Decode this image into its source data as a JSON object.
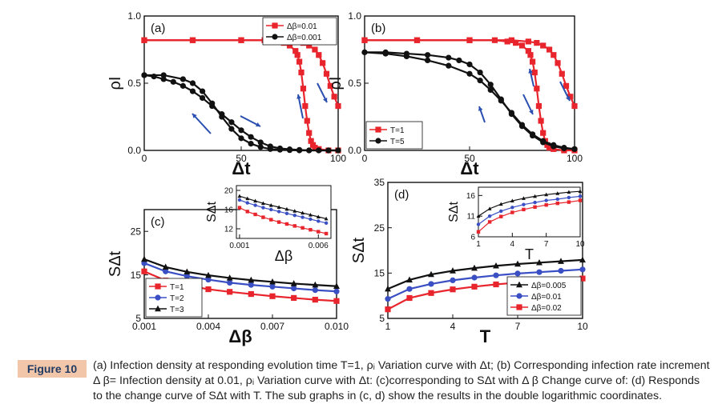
{
  "figure_label": "Figure 10",
  "caption": "(a) Infection density at responding evolution time T=1, ρᵢ Variation curve with Δt; (b) Corresponding infection rate increment Δ β= Infection density at 0.01, ρᵢ Variation curve with Δt: (c)corresponding to SΔt with Δ β Change curve of: (d) Responds to the change curve of SΔt with T. The sub graphs in (c, d) show the results in the double logarithmic coordinates.",
  "colors": {
    "red": "#e8242c",
    "black": "#111111",
    "blue": "#3a4fc4",
    "arrow": "#2a4fb0"
  },
  "chart_data": [
    {
      "panel": "(a)",
      "type": "line",
      "xlabel": "Δt",
      "ylabel": "ρI",
      "xlim": [
        0,
        100
      ],
      "ylim": [
        0,
        1
      ],
      "xticks": [
        "0",
        "50",
        "100"
      ],
      "yticks": [
        "0.0",
        "0.5",
        "1.0"
      ],
      "legend_position": "top-right",
      "series": [
        {
          "name": "Δβ=0.01",
          "color": "red",
          "marker": "square",
          "x": [
            0,
            25,
            50,
            62,
            68,
            72,
            75,
            78,
            79,
            80,
            81,
            82,
            83,
            84,
            85,
            86,
            87,
            88,
            90,
            95,
            100
          ],
          "y": [
            0.82,
            0.82,
            0.82,
            0.82,
            0.81,
            0.8,
            0.78,
            0.74,
            0.71,
            0.66,
            0.58,
            0.46,
            0.33,
            0.22,
            0.13,
            0.07,
            0.04,
            0.02,
            0.01,
            0,
            0
          ]
        },
        {
          "name": "Δβ=0.01",
          "color": "red",
          "marker": "square",
          "x": [
            0,
            25,
            50,
            70,
            78,
            82,
            85,
            88,
            90,
            92,
            94,
            96,
            98,
            100
          ],
          "y": [
            0.82,
            0.82,
            0.82,
            0.82,
            0.81,
            0.8,
            0.78,
            0.75,
            0.71,
            0.65,
            0.57,
            0.48,
            0.4,
            0.33
          ]
        },
        {
          "name": "Δβ=0.001",
          "color": "black",
          "marker": "circle",
          "x": [
            0,
            5,
            10,
            15,
            20,
            25,
            30,
            35,
            40,
            45,
            50,
            55,
            60,
            65,
            70,
            75,
            80,
            85,
            90,
            95,
            100
          ],
          "y": [
            0.56,
            0.55,
            0.53,
            0.51,
            0.48,
            0.44,
            0.39,
            0.33,
            0.27,
            0.21,
            0.15,
            0.1,
            0.06,
            0.03,
            0.015,
            0.008,
            0.004,
            0,
            0,
            0,
            0
          ]
        },
        {
          "name": "Δβ=0.001",
          "color": "black",
          "marker": "circle",
          "x": [
            0,
            10,
            20,
            25,
            30,
            35,
            40,
            45,
            50,
            55,
            60,
            65,
            70,
            75,
            80,
            85,
            90,
            95,
            100
          ],
          "y": [
            0.56,
            0.56,
            0.53,
            0.5,
            0.44,
            0.35,
            0.25,
            0.16,
            0.09,
            0.05,
            0.025,
            0.01,
            0.005,
            0.002,
            0,
            0,
            0,
            0,
            0
          ]
        }
      ],
      "legend": [
        {
          "label": "Δβ=0.01",
          "series": 0
        },
        {
          "label": "Δβ=0.001",
          "series": 2
        }
      ]
    },
    {
      "panel": "(b)",
      "type": "line",
      "xlabel": "Δt",
      "ylabel": "ρI",
      "xlim": [
        0,
        100
      ],
      "ylim": [
        0,
        1
      ],
      "xticks": [
        "0",
        "50",
        "100"
      ],
      "yticks": [
        "0.0",
        "0.5",
        "1.0"
      ],
      "legend_position": "bottom-left",
      "series": [
        {
          "name": "T=1",
          "color": "red",
          "marker": "square",
          "x": [
            0,
            25,
            50,
            62,
            68,
            72,
            75,
            78,
            79,
            80,
            81,
            82,
            83,
            84,
            85,
            86,
            87,
            88,
            90,
            95,
            100
          ],
          "y": [
            0.82,
            0.82,
            0.82,
            0.82,
            0.81,
            0.8,
            0.78,
            0.74,
            0.71,
            0.66,
            0.58,
            0.46,
            0.33,
            0.22,
            0.13,
            0.07,
            0.04,
            0.02,
            0.01,
            0,
            0
          ]
        },
        {
          "name": "T=1",
          "color": "red",
          "marker": "square",
          "x": [
            0,
            25,
            50,
            70,
            78,
            82,
            85,
            88,
            90,
            92,
            94,
            96,
            98,
            100
          ],
          "y": [
            0.82,
            0.82,
            0.82,
            0.82,
            0.81,
            0.8,
            0.78,
            0.75,
            0.71,
            0.65,
            0.57,
            0.48,
            0.4,
            0.33
          ]
        },
        {
          "name": "T=5",
          "color": "black",
          "marker": "circle",
          "x": [
            0,
            10,
            20,
            30,
            40,
            50,
            55,
            60,
            65,
            70,
            75,
            80,
            85,
            90,
            95,
            100
          ],
          "y": [
            0.73,
            0.72,
            0.7,
            0.67,
            0.63,
            0.57,
            0.52,
            0.45,
            0.37,
            0.28,
            0.19,
            0.12,
            0.07,
            0.04,
            0.02,
            0.01
          ]
        },
        {
          "name": "T=5",
          "color": "black",
          "marker": "circle",
          "x": [
            0,
            10,
            20,
            30,
            40,
            45,
            50,
            55,
            60,
            65,
            70,
            75,
            80,
            85,
            90,
            95,
            100
          ],
          "y": [
            0.73,
            0.73,
            0.72,
            0.71,
            0.69,
            0.67,
            0.64,
            0.58,
            0.49,
            0.38,
            0.27,
            0.18,
            0.11,
            0.06,
            0.03,
            0.015,
            0.01
          ]
        }
      ],
      "legend": [
        {
          "label": "T=1",
          "series": 0
        },
        {
          "label": "T=5",
          "series": 2
        }
      ]
    },
    {
      "panel": "(c)",
      "type": "line",
      "xlabel": "Δβ",
      "ylabel": "SΔt",
      "xlim": [
        0.001,
        0.01
      ],
      "ylim": [
        5,
        30
      ],
      "xticks": [
        "0.001",
        "0.004",
        "0.007",
        "0.010"
      ],
      "yticks": [
        "5",
        "15",
        "25"
      ],
      "legend_position": "bottom-left",
      "series": [
        {
          "name": "T=1",
          "color": "red",
          "marker": "square",
          "x": [
            0.001,
            0.002,
            0.003,
            0.004,
            0.005,
            0.006,
            0.007,
            0.008,
            0.009,
            0.01
          ],
          "y": [
            15.8,
            13.7,
            12.6,
            11.7,
            11.1,
            10.6,
            10.1,
            9.7,
            9.3,
            9.0
          ]
        },
        {
          "name": "T=2",
          "color": "blue",
          "marker": "circle",
          "x": [
            0.001,
            0.002,
            0.003,
            0.004,
            0.005,
            0.006,
            0.007,
            0.008,
            0.009,
            0.01
          ],
          "y": [
            17.7,
            15.8,
            14.7,
            13.9,
            13.2,
            12.7,
            12.3,
            11.9,
            11.5,
            11.2
          ]
        },
        {
          "name": "T=3",
          "color": "black",
          "marker": "triangle",
          "x": [
            0.001,
            0.002,
            0.003,
            0.004,
            0.005,
            0.006,
            0.007,
            0.008,
            0.009,
            0.01
          ],
          "y": [
            18.6,
            16.8,
            15.7,
            14.9,
            14.3,
            13.8,
            13.4,
            13.0,
            12.7,
            12.4
          ]
        }
      ],
      "inset": {
        "xlabel": "Δβ",
        "ylabel": "SΔt",
        "xlim": [
          0.0008,
          0.0068
        ],
        "ylim": [
          10,
          21
        ],
        "xticks": [
          "0.001",
          "0.006"
        ],
        "yticks": [
          "12",
          "16",
          "20"
        ],
        "series": [
          {
            "color": "red",
            "marker": "square",
            "x": [
              0.001,
              0.0015,
              0.002,
              0.0025,
              0.003,
              0.0035,
              0.004,
              0.0045,
              0.005,
              0.0055,
              0.006,
              0.0065
            ],
            "y": [
              16.4,
              15.6,
              15.0,
              14.4,
              13.9,
              13.4,
              13.0,
              12.6,
              12.2,
              11.8,
              11.4,
              11.0
            ]
          },
          {
            "color": "blue",
            "marker": "circle",
            "x": [
              0.001,
              0.0015,
              0.002,
              0.0025,
              0.003,
              0.0035,
              0.004,
              0.0045,
              0.005,
              0.0055,
              0.006,
              0.0065
            ],
            "y": [
              18.0,
              17.4,
              16.9,
              16.4,
              16.0,
              15.6,
              15.2,
              14.8,
              14.4,
              14.0,
              13.6,
              13.2
            ]
          },
          {
            "color": "black",
            "marker": "triangle",
            "x": [
              0.001,
              0.0015,
              0.002,
              0.0025,
              0.003,
              0.0035,
              0.004,
              0.0045,
              0.005,
              0.0055,
              0.006,
              0.0065
            ],
            "y": [
              18.8,
              18.3,
              17.8,
              17.3,
              16.9,
              16.5,
              16.1,
              15.7,
              15.3,
              14.9,
              14.5,
              14.1
            ]
          }
        ]
      },
      "legend": [
        {
          "label": "T=1",
          "series": 0
        },
        {
          "label": "T=2",
          "series": 1
        },
        {
          "label": "T=3",
          "series": 2
        }
      ]
    },
    {
      "panel": "(d)",
      "type": "line",
      "xlabel": "T",
      "ylabel": "SΔt",
      "xlim": [
        1,
        10
      ],
      "ylim": [
        5,
        35
      ],
      "xticks": [
        "1",
        "4",
        "7",
        "10"
      ],
      "yticks": [
        "5",
        "15",
        "25",
        "35"
      ],
      "legend_position": "bottom-right",
      "series": [
        {
          "name": "Δβ=0.005",
          "color": "black",
          "marker": "triangle",
          "x": [
            1,
            2,
            3,
            4,
            5,
            6,
            7,
            8,
            9,
            10
          ],
          "y": [
            11.5,
            13.5,
            14.7,
            15.5,
            16.1,
            16.6,
            17.0,
            17.3,
            17.6,
            17.9
          ]
        },
        {
          "name": "Δβ=0.01",
          "color": "blue",
          "marker": "circle",
          "x": [
            1,
            2,
            3,
            4,
            5,
            6,
            7,
            8,
            9,
            10
          ],
          "y": [
            9.3,
            11.5,
            12.6,
            13.4,
            14.0,
            14.5,
            14.9,
            15.2,
            15.5,
            15.8
          ]
        },
        {
          "name": "Δβ=0.02",
          "color": "red",
          "marker": "square",
          "x": [
            1,
            2,
            3,
            4,
            5,
            6,
            7,
            8,
            9,
            10
          ],
          "y": [
            7.0,
            9.5,
            10.6,
            11.4,
            12.0,
            12.5,
            12.9,
            13.2,
            13.5,
            13.8
          ]
        }
      ],
      "inset": {
        "xlabel": "T",
        "ylabel": "SΔt",
        "xlim": [
          1,
          10
        ],
        "ylim": [
          6,
          18
        ],
        "xticks": [
          "1",
          "4",
          "7",
          "10"
        ],
        "yticks": [
          "6",
          "11",
          "16"
        ],
        "series": [
          {
            "color": "black",
            "marker": "triangle",
            "x": [
              1,
              2,
              3,
              4,
              5,
              6,
              7,
              8,
              9,
              10
            ],
            "y": [
              11.0,
              12.8,
              13.9,
              14.7,
              15.3,
              15.8,
              16.2,
              16.5,
              16.8,
              17.0
            ]
          },
          {
            "color": "blue",
            "marker": "circle",
            "x": [
              1,
              2,
              3,
              4,
              5,
              6,
              7,
              8,
              9,
              10
            ],
            "y": [
              9.0,
              11.0,
              12.2,
              13.1,
              13.8,
              14.3,
              14.8,
              15.1,
              15.5,
              15.8
            ]
          },
          {
            "color": "red",
            "marker": "square",
            "x": [
              1,
              2,
              3,
              4,
              5,
              6,
              7,
              8,
              9,
              10
            ],
            "y": [
              7.2,
              9.6,
              10.9,
              11.9,
              12.6,
              13.2,
              13.7,
              14.1,
              14.4,
              14.8
            ]
          }
        ]
      },
      "legend": [
        {
          "label": "Δβ=0.005",
          "series": 0
        },
        {
          "label": "Δβ=0.01",
          "series": 1
        },
        {
          "label": "Δβ=0.02",
          "series": 2
        }
      ]
    }
  ]
}
